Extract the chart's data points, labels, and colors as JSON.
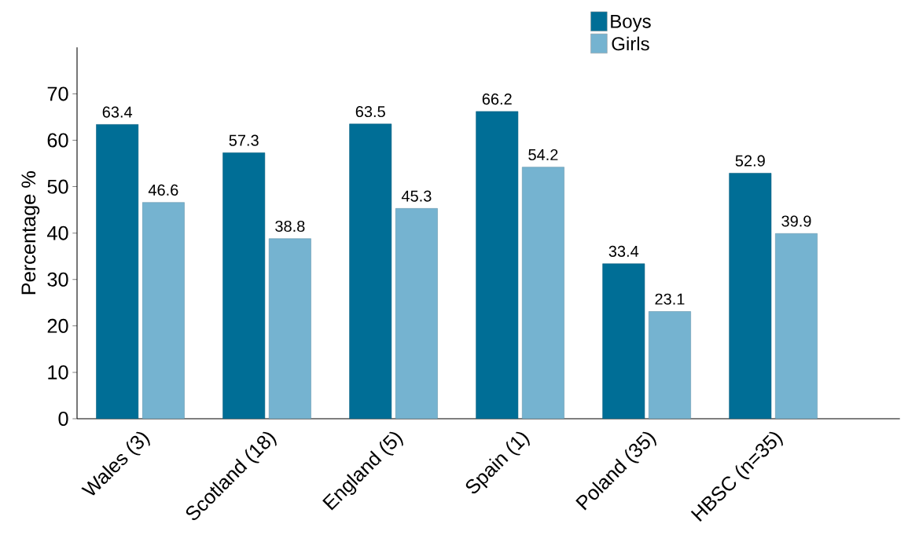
{
  "chart_data": {
    "type": "bar",
    "ylabel": "Percentage %",
    "categories": [
      "Wales (3)",
      "Scotland (18)",
      "England (5)",
      "Spain (1)",
      "Poland (35)",
      "HBSC (n=35)"
    ],
    "series": [
      {
        "name": "Boys",
        "color": "#006e96",
        "values": [
          63.4,
          57.3,
          63.5,
          66.2,
          33.4,
          52.9
        ]
      },
      {
        "name": "Girls",
        "color": "#75b3d0",
        "values": [
          46.6,
          38.8,
          45.3,
          54.2,
          23.1,
          39.9
        ]
      }
    ],
    "ylim": [
      0,
      80
    ],
    "yticks": [
      0,
      10,
      20,
      30,
      40,
      50,
      60,
      70
    ],
    "data_labels": true,
    "legend": "top right",
    "grid": false
  }
}
